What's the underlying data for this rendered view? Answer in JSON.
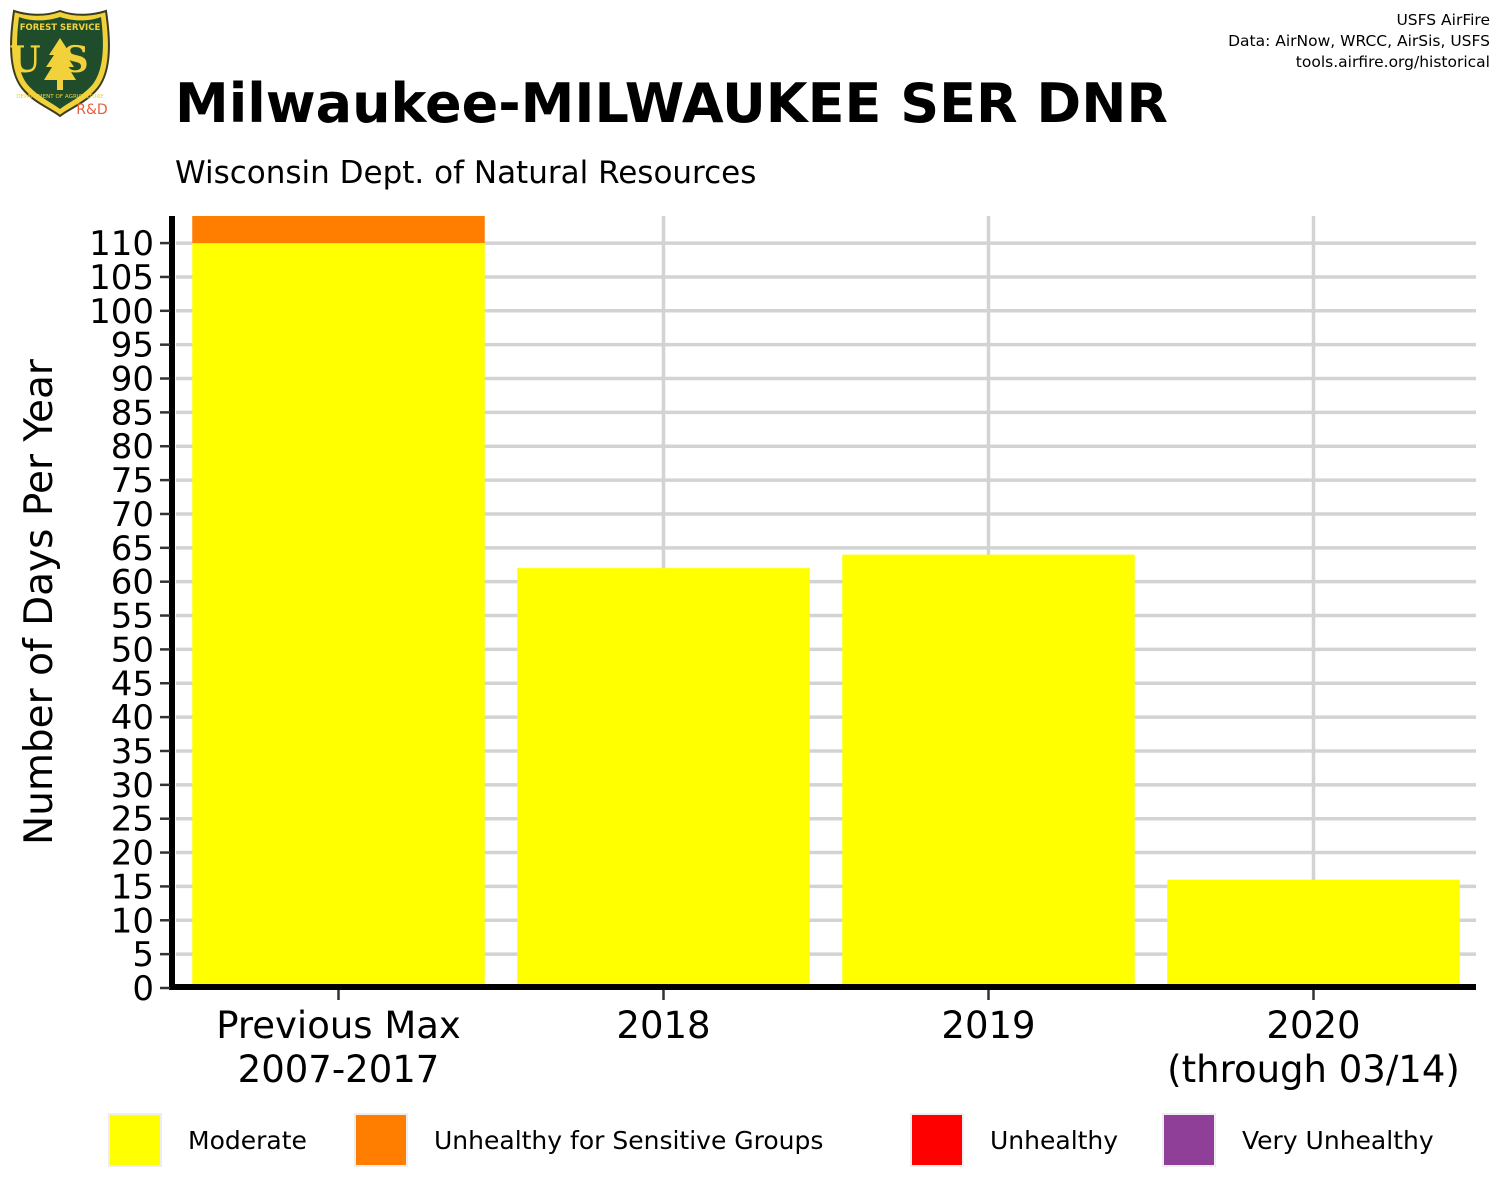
{
  "logo": {
    "top_text": "FOREST SERVICE",
    "letters": "US",
    "bottom_text": "DEPARTMENT OF AGRICULTURE",
    "rd_label": "R&D"
  },
  "credits": {
    "line1": "USFS AirFire",
    "line2": "Data: AirNow, WRCC, AirSis, USFS",
    "line3": "tools.airfire.org/historical"
  },
  "chart_data": {
    "type": "bar",
    "stacked": true,
    "title": "Milwaukee-MILWAUKEE SER DNR",
    "subtitle": "Wisconsin Dept. of Natural Resources",
    "ylabel": "Number of Days Per Year",
    "xlabel": "",
    "categories": [
      [
        "Previous Max",
        "2007-2017"
      ],
      [
        "2018"
      ],
      [
        "2019"
      ],
      [
        "2020",
        "(through 03/14)"
      ]
    ],
    "yticks": [
      0,
      5,
      10,
      15,
      20,
      25,
      30,
      35,
      40,
      45,
      50,
      55,
      60,
      65,
      70,
      75,
      80,
      85,
      90,
      95,
      100,
      105,
      110
    ],
    "ylim": [
      0,
      114
    ],
    "grid": true,
    "legend_position": "bottom",
    "series": [
      {
        "name": "Moderate",
        "color": "#ffff00",
        "values": [
          110,
          62,
          64,
          16
        ]
      },
      {
        "name": "Unhealthy for Sensitive Groups",
        "color": "#ff7e00",
        "values": [
          4,
          0,
          0,
          0
        ]
      },
      {
        "name": "Unhealthy",
        "color": "#ff0000",
        "values": [
          0,
          0,
          0,
          0
        ]
      },
      {
        "name": "Very Unhealthy",
        "color": "#8f3f97",
        "values": [
          0,
          0,
          0,
          0
        ]
      }
    ]
  }
}
